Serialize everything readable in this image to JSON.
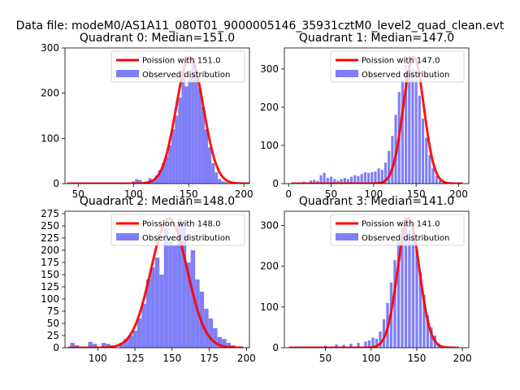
{
  "figure": {
    "suptitle": "Data file: modeM0/AS1A11_080T01_9000005146_35931cztM0_level2_quad_clean.evt"
  },
  "colors": {
    "hist": "#7f7ff7",
    "poisson": "#ff0000",
    "axis": "#000000"
  },
  "chart_data": [
    {
      "type": "bar",
      "title": "Quadrant 0: Median=151.0",
      "xlim": [
        38,
        205
      ],
      "ylim": [
        0,
        300
      ],
      "xticks": [
        50,
        100,
        150,
        200
      ],
      "yticks": [
        0,
        100,
        200,
        300
      ],
      "legend": [
        "Poission with 151.0",
        "Observed distribution"
      ],
      "poisson_mean": 151.0,
      "poisson_peak": 280,
      "bin_edges": [
        40,
        205
      ],
      "hist": [
        [
          100,
          5
        ],
        [
          103,
          10
        ],
        [
          106,
          8
        ],
        [
          109,
          2
        ],
        [
          112,
          5
        ],
        [
          115,
          12
        ],
        [
          118,
          8
        ],
        [
          121,
          18
        ],
        [
          124,
          30
        ],
        [
          127,
          45
        ],
        [
          130,
          60
        ],
        [
          133,
          85
        ],
        [
          136,
          120
        ],
        [
          139,
          150
        ],
        [
          142,
          190
        ],
        [
          145,
          250
        ],
        [
          148,
          215
        ],
        [
          151,
          235
        ],
        [
          154,
          280
        ],
        [
          157,
          250
        ],
        [
          160,
          210
        ],
        [
          163,
          170
        ],
        [
          166,
          120
        ],
        [
          169,
          80
        ],
        [
          172,
          45
        ],
        [
          175,
          25
        ],
        [
          178,
          10
        ],
        [
          181,
          5
        ],
        [
          184,
          3
        ]
      ]
    },
    {
      "type": "bar",
      "title": "Quadrant 1: Median=147.0",
      "xlim": [
        -5,
        212
      ],
      "ylim": [
        0,
        355
      ],
      "xticks": [
        0,
        50,
        100,
        150,
        200
      ],
      "yticks": [
        0,
        100,
        200,
        300
      ],
      "legend": [
        "Poission with 147.0",
        "Observed distribution"
      ],
      "poisson_mean": 147.0,
      "poisson_peak": 332,
      "bin_edges": [
        3,
        205
      ],
      "hist": [
        [
          18,
          5
        ],
        [
          22,
          3
        ],
        [
          26,
          8
        ],
        [
          30,
          10
        ],
        [
          34,
          7
        ],
        [
          38,
          22
        ],
        [
          42,
          28
        ],
        [
          46,
          15
        ],
        [
          50,
          18
        ],
        [
          54,
          12
        ],
        [
          58,
          8
        ],
        [
          62,
          12
        ],
        [
          66,
          15
        ],
        [
          70,
          12
        ],
        [
          74,
          18
        ],
        [
          78,
          22
        ],
        [
          82,
          20
        ],
        [
          86,
          25
        ],
        [
          90,
          30
        ],
        [
          94,
          28
        ],
        [
          98,
          30
        ],
        [
          102,
          32
        ],
        [
          106,
          40
        ],
        [
          110,
          36
        ],
        [
          114,
          55
        ],
        [
          118,
          85
        ],
        [
          122,
          125
        ],
        [
          126,
          180
        ],
        [
          130,
          240
        ],
        [
          134,
          270
        ],
        [
          138,
          310
        ],
        [
          142,
          320
        ],
        [
          146,
          300
        ],
        [
          150,
          280
        ],
        [
          154,
          230
        ],
        [
          158,
          170
        ],
        [
          162,
          120
        ],
        [
          166,
          75
        ],
        [
          170,
          40
        ],
        [
          174,
          20
        ],
        [
          178,
          8
        ],
        [
          182,
          3
        ]
      ]
    },
    {
      "type": "bar",
      "title": "Quadrant 2: Median=148.0",
      "xlim": [
        78,
        202
      ],
      "ylim": [
        0,
        280
      ],
      "xticks": [
        100,
        125,
        150,
        175,
        200
      ],
      "yticks": [
        0,
        25,
        50,
        75,
        100,
        125,
        150,
        175,
        200,
        225,
        250,
        275
      ],
      "legend": [
        "Poission with 148.0",
        "Observed distribution"
      ],
      "poisson_mean": 148.0,
      "poisson_peak": 265,
      "bin_edges": [
        80,
        198
      ],
      "hist": [
        [
          83,
          10
        ],
        [
          86,
          5
        ],
        [
          89,
          2
        ],
        [
          95,
          12
        ],
        [
          98,
          8
        ],
        [
          104,
          10
        ],
        [
          107,
          8
        ],
        [
          110,
          5
        ],
        [
          116,
          10
        ],
        [
          119,
          18
        ],
        [
          122,
          25
        ],
        [
          125,
          35
        ],
        [
          128,
          60
        ],
        [
          131,
          90
        ],
        [
          134,
          140
        ],
        [
          137,
          165
        ],
        [
          140,
          185
        ],
        [
          143,
          150
        ],
        [
          146,
          245
        ],
        [
          149,
          225
        ],
        [
          152,
          210
        ],
        [
          155,
          265
        ],
        [
          158,
          250
        ],
        [
          161,
          175
        ],
        [
          164,
          200
        ],
        [
          167,
          140
        ],
        [
          170,
          115
        ],
        [
          173,
          80
        ],
        [
          176,
          60
        ],
        [
          179,
          40
        ],
        [
          182,
          22
        ],
        [
          185,
          18
        ],
        [
          188,
          10
        ],
        [
          191,
          5
        ]
      ]
    },
    {
      "type": "bar",
      "title": "Quadrant 3: Median=141.0",
      "xlim": [
        5,
        207
      ],
      "ylim": [
        0,
        335
      ],
      "xticks": [
        50,
        100,
        150,
        200
      ],
      "yticks": [
        0,
        100,
        200,
        300
      ],
      "legend": [
        "Poission with 141.0",
        "Observed distribution"
      ],
      "poisson_mean": 141.0,
      "poisson_peak": 318,
      "bin_edges": [
        10,
        196
      ],
      "hist": [
        [
          30,
          3
        ],
        [
          50,
          5
        ],
        [
          62,
          8
        ],
        [
          70,
          7
        ],
        [
          78,
          10
        ],
        [
          86,
          12
        ],
        [
          94,
          15
        ],
        [
          98,
          18
        ],
        [
          102,
          25
        ],
        [
          106,
          22
        ],
        [
          110,
          40
        ],
        [
          114,
          70
        ],
        [
          118,
          110
        ],
        [
          122,
          160
        ],
        [
          126,
          215
        ],
        [
          130,
          260
        ],
        [
          134,
          295
        ],
        [
          138,
          320
        ],
        [
          142,
          290
        ],
        [
          146,
          300
        ],
        [
          150,
          240
        ],
        [
          154,
          185
        ],
        [
          158,
          130
        ],
        [
          162,
          80
        ],
        [
          166,
          50
        ],
        [
          170,
          30
        ],
        [
          174,
          10
        ],
        [
          178,
          5
        ]
      ]
    }
  ]
}
